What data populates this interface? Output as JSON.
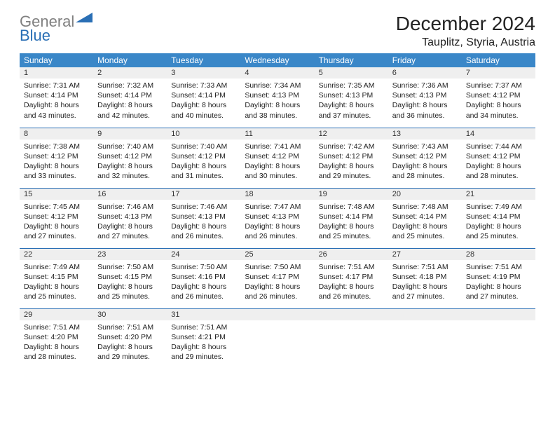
{
  "logo": {
    "gray": "General",
    "blue": "Blue"
  },
  "header": {
    "title": "December 2024",
    "location": "Tauplitz, Styria, Austria"
  },
  "colors": {
    "header_bg": "#3a87c8",
    "header_fg": "#ffffff",
    "daynum_bg": "#efefef",
    "row_border": "#2a6fb5",
    "logo_gray": "#808080",
    "logo_blue": "#2a6fb5"
  },
  "weekdays": [
    "Sunday",
    "Monday",
    "Tuesday",
    "Wednesday",
    "Thursday",
    "Friday",
    "Saturday"
  ],
  "weeks": [
    [
      {
        "day": "1",
        "sunrise": "7:31 AM",
        "sunset": "4:14 PM",
        "daylight": "8 hours and 43 minutes."
      },
      {
        "day": "2",
        "sunrise": "7:32 AM",
        "sunset": "4:14 PM",
        "daylight": "8 hours and 42 minutes."
      },
      {
        "day": "3",
        "sunrise": "7:33 AM",
        "sunset": "4:14 PM",
        "daylight": "8 hours and 40 minutes."
      },
      {
        "day": "4",
        "sunrise": "7:34 AM",
        "sunset": "4:13 PM",
        "daylight": "8 hours and 38 minutes."
      },
      {
        "day": "5",
        "sunrise": "7:35 AM",
        "sunset": "4:13 PM",
        "daylight": "8 hours and 37 minutes."
      },
      {
        "day": "6",
        "sunrise": "7:36 AM",
        "sunset": "4:13 PM",
        "daylight": "8 hours and 36 minutes."
      },
      {
        "day": "7",
        "sunrise": "7:37 AM",
        "sunset": "4:12 PM",
        "daylight": "8 hours and 34 minutes."
      }
    ],
    [
      {
        "day": "8",
        "sunrise": "7:38 AM",
        "sunset": "4:12 PM",
        "daylight": "8 hours and 33 minutes."
      },
      {
        "day": "9",
        "sunrise": "7:40 AM",
        "sunset": "4:12 PM",
        "daylight": "8 hours and 32 minutes."
      },
      {
        "day": "10",
        "sunrise": "7:40 AM",
        "sunset": "4:12 PM",
        "daylight": "8 hours and 31 minutes."
      },
      {
        "day": "11",
        "sunrise": "7:41 AM",
        "sunset": "4:12 PM",
        "daylight": "8 hours and 30 minutes."
      },
      {
        "day": "12",
        "sunrise": "7:42 AM",
        "sunset": "4:12 PM",
        "daylight": "8 hours and 29 minutes."
      },
      {
        "day": "13",
        "sunrise": "7:43 AM",
        "sunset": "4:12 PM",
        "daylight": "8 hours and 28 minutes."
      },
      {
        "day": "14",
        "sunrise": "7:44 AM",
        "sunset": "4:12 PM",
        "daylight": "8 hours and 28 minutes."
      }
    ],
    [
      {
        "day": "15",
        "sunrise": "7:45 AM",
        "sunset": "4:12 PM",
        "daylight": "8 hours and 27 minutes."
      },
      {
        "day": "16",
        "sunrise": "7:46 AM",
        "sunset": "4:13 PM",
        "daylight": "8 hours and 27 minutes."
      },
      {
        "day": "17",
        "sunrise": "7:46 AM",
        "sunset": "4:13 PM",
        "daylight": "8 hours and 26 minutes."
      },
      {
        "day": "18",
        "sunrise": "7:47 AM",
        "sunset": "4:13 PM",
        "daylight": "8 hours and 26 minutes."
      },
      {
        "day": "19",
        "sunrise": "7:48 AM",
        "sunset": "4:14 PM",
        "daylight": "8 hours and 25 minutes."
      },
      {
        "day": "20",
        "sunrise": "7:48 AM",
        "sunset": "4:14 PM",
        "daylight": "8 hours and 25 minutes."
      },
      {
        "day": "21",
        "sunrise": "7:49 AM",
        "sunset": "4:14 PM",
        "daylight": "8 hours and 25 minutes."
      }
    ],
    [
      {
        "day": "22",
        "sunrise": "7:49 AM",
        "sunset": "4:15 PM",
        "daylight": "8 hours and 25 minutes."
      },
      {
        "day": "23",
        "sunrise": "7:50 AM",
        "sunset": "4:15 PM",
        "daylight": "8 hours and 25 minutes."
      },
      {
        "day": "24",
        "sunrise": "7:50 AM",
        "sunset": "4:16 PM",
        "daylight": "8 hours and 26 minutes."
      },
      {
        "day": "25",
        "sunrise": "7:50 AM",
        "sunset": "4:17 PM",
        "daylight": "8 hours and 26 minutes."
      },
      {
        "day": "26",
        "sunrise": "7:51 AM",
        "sunset": "4:17 PM",
        "daylight": "8 hours and 26 minutes."
      },
      {
        "day": "27",
        "sunrise": "7:51 AM",
        "sunset": "4:18 PM",
        "daylight": "8 hours and 27 minutes."
      },
      {
        "day": "28",
        "sunrise": "7:51 AM",
        "sunset": "4:19 PM",
        "daylight": "8 hours and 27 minutes."
      }
    ],
    [
      {
        "day": "29",
        "sunrise": "7:51 AM",
        "sunset": "4:20 PM",
        "daylight": "8 hours and 28 minutes."
      },
      {
        "day": "30",
        "sunrise": "7:51 AM",
        "sunset": "4:20 PM",
        "daylight": "8 hours and 29 minutes."
      },
      {
        "day": "31",
        "sunrise": "7:51 AM",
        "sunset": "4:21 PM",
        "daylight": "8 hours and 29 minutes."
      },
      {
        "day": "",
        "empty": true
      },
      {
        "day": "",
        "empty": true
      },
      {
        "day": "",
        "empty": true
      },
      {
        "day": "",
        "empty": true
      }
    ]
  ],
  "labels": {
    "sunrise": "Sunrise:",
    "sunset": "Sunset:",
    "daylight": "Daylight:"
  }
}
